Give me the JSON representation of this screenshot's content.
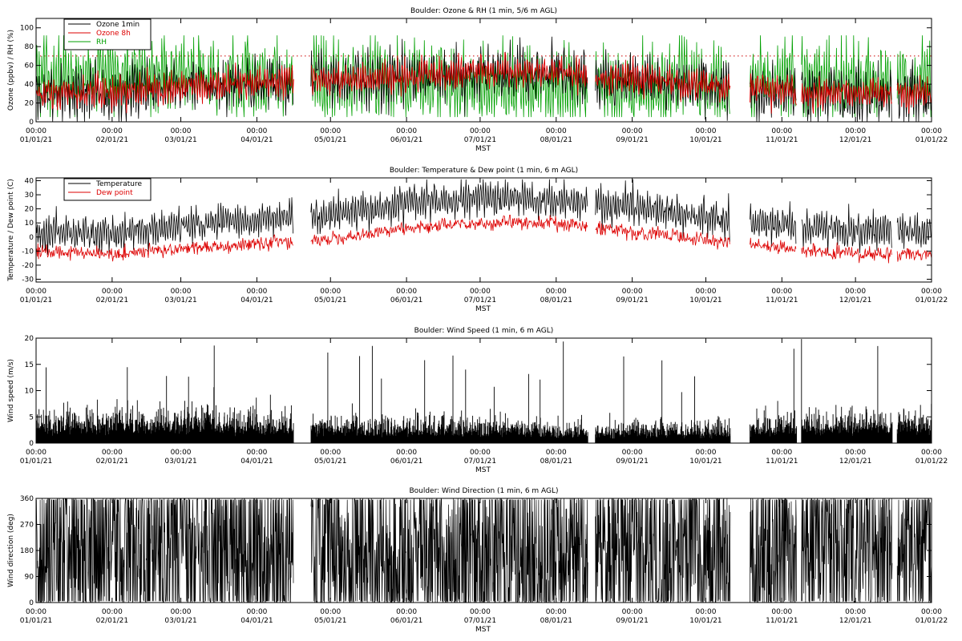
{
  "chart_data": [
    {
      "type": "line",
      "title": "Boulder: Ozone & RH (1 min, 5/6 m AGL)",
      "xlabel": "MST",
      "ylabel": "Ozone (ppbv) / RH (%)",
      "xlim": [
        "01/01/21",
        "01/01/22"
      ],
      "ylim": [
        0,
        110
      ],
      "yticks": [
        "0",
        "20",
        "40",
        "60",
        "80",
        "100"
      ],
      "xticks": [
        "01/01/21",
        "02/01/21",
        "03/01/21",
        "04/01/21",
        "05/01/21",
        "06/01/21",
        "07/01/21",
        "08/01/21",
        "09/01/21",
        "10/01/21",
        "11/01/21",
        "12/01/21",
        "01/01/22"
      ],
      "xtick_time": "00:00",
      "legend": {
        "position": "top-left",
        "entries": [
          "Ozone 1min",
          "Ozone 8h",
          "RH"
        ]
      },
      "reference_line": {
        "value": 70,
        "color": "#cc0000",
        "style": "dotted"
      },
      "colors": {
        "Ozone 1min": "#000000",
        "Ozone 8h": "#dd0000",
        "RH": "#00a000"
      },
      "series": [
        {
          "name": "Ozone 1min",
          "x": [
            "01/01/21",
            "02/01/21",
            "03/01/21",
            "04/01/21",
            "05/01/21",
            "06/01/21",
            "07/01/21",
            "08/01/21",
            "09/01/21",
            "10/01/21",
            "11/01/21",
            "12/01/21"
          ],
          "values": [
            32,
            30,
            38,
            42,
            44,
            48,
            52,
            50,
            44,
            38,
            30,
            28
          ]
        },
        {
          "name": "Ozone 8h",
          "x": [
            "01/01/21",
            "02/01/21",
            "03/01/21",
            "04/01/21",
            "05/01/21",
            "06/01/21",
            "07/01/21",
            "08/01/21",
            "09/01/21",
            "10/01/21",
            "11/01/21",
            "12/01/21"
          ],
          "values": [
            32,
            30,
            38,
            42,
            44,
            48,
            54,
            52,
            46,
            38,
            32,
            30
          ]
        },
        {
          "name": "RH",
          "x": [
            "01/01/21",
            "02/01/21",
            "03/01/21",
            "04/01/21",
            "05/01/21",
            "06/01/21",
            "07/01/21",
            "08/01/21",
            "09/01/21",
            "10/01/21",
            "11/01/21",
            "12/01/21"
          ],
          "values": [
            45,
            50,
            48,
            45,
            45,
            45,
            40,
            38,
            38,
            38,
            45,
            42
          ]
        }
      ]
    },
    {
      "type": "line",
      "title": "Boulder: Temperature & Dew point (1 min, 6 m AGL)",
      "xlabel": "MST",
      "ylabel": "Temperature / Dew point (C)",
      "xlim": [
        "01/01/21",
        "01/01/22"
      ],
      "ylim": [
        -32,
        42
      ],
      "yticks": [
        "-30",
        "-20",
        "-10",
        "0",
        "10",
        "20",
        "30",
        "40"
      ],
      "xticks": [
        "01/01/21",
        "02/01/21",
        "03/01/21",
        "04/01/21",
        "05/01/21",
        "06/01/21",
        "07/01/21",
        "08/01/21",
        "09/01/21",
        "10/01/21",
        "11/01/21",
        "12/01/21",
        "01/01/22"
      ],
      "xtick_time": "00:00",
      "legend": {
        "position": "top-left",
        "entries": [
          "Temperature",
          "Dew point"
        ]
      },
      "colors": {
        "Temperature": "#000000",
        "Dew point": "#dd0000"
      },
      "series": [
        {
          "name": "Temperature",
          "x": [
            "01/01/21",
            "02/01/21",
            "03/01/21",
            "04/01/21",
            "05/01/21",
            "06/01/21",
            "07/01/21",
            "08/01/21",
            "09/01/21",
            "10/01/21",
            "11/01/21",
            "12/01/21"
          ],
          "values": [
            3,
            2,
            8,
            12,
            16,
            24,
            28,
            26,
            22,
            14,
            8,
            4
          ]
        },
        {
          "name": "Dew point",
          "x": [
            "01/01/21",
            "02/01/21",
            "03/01/21",
            "04/01/21",
            "05/01/21",
            "06/01/21",
            "07/01/21",
            "08/01/21",
            "09/01/21",
            "10/01/21",
            "11/01/21",
            "12/01/21"
          ],
          "values": [
            -10,
            -12,
            -8,
            -5,
            -2,
            6,
            10,
            10,
            4,
            -2,
            -8,
            -12
          ]
        }
      ]
    },
    {
      "type": "line",
      "title": "Boulder: Wind Speed (1 min, 6 m AGL)",
      "xlabel": "MST",
      "ylabel": "Wind speed (m/s)",
      "xlim": [
        "01/01/21",
        "01/01/22"
      ],
      "ylim": [
        0,
        20
      ],
      "yticks": [
        "0",
        "5",
        "10",
        "15",
        "20"
      ],
      "xticks": [
        "01/01/21",
        "02/01/21",
        "03/01/21",
        "04/01/21",
        "05/01/21",
        "06/01/21",
        "07/01/21",
        "08/01/21",
        "09/01/21",
        "10/01/21",
        "11/01/21",
        "12/01/21",
        "01/01/22"
      ],
      "xtick_time": "00:00",
      "colors": {
        "Wind speed": "#000000"
      },
      "series": [
        {
          "x": [
            "01/01/21",
            "02/01/21",
            "03/01/21",
            "04/01/21",
            "05/01/21",
            "06/01/21",
            "07/01/21",
            "08/01/21",
            "09/01/21",
            "10/01/21",
            "11/01/21",
            "12/01/21"
          ],
          "values": [
            3,
            3,
            3.5,
            3,
            2.5,
            2.5,
            2.5,
            2,
            2,
            2,
            2.5,
            3
          ]
        }
      ]
    },
    {
      "type": "line",
      "title": "Boulder: Wind Direction (1 min, 6 m AGL)",
      "xlabel": "MST",
      "ylabel": "Wind direction (deg)",
      "xlim": [
        "01/01/21",
        "01/01/22"
      ],
      "ylim": [
        0,
        360
      ],
      "yticks": [
        "0",
        "90",
        "180",
        "270",
        "360"
      ],
      "xticks": [
        "01/01/21",
        "02/01/21",
        "03/01/21",
        "04/01/21",
        "05/01/21",
        "06/01/21",
        "07/01/21",
        "08/01/21",
        "09/01/21",
        "10/01/21",
        "11/01/21",
        "12/01/21",
        "01/01/22"
      ],
      "xtick_time": "00:00",
      "colors": {
        "Wind direction": "#000000"
      },
      "series": [
        {
          "x": [
            "01/01/21",
            "02/01/21",
            "03/01/21",
            "04/01/21",
            "05/01/21",
            "06/01/21",
            "07/01/21",
            "08/01/21",
            "09/01/21",
            "10/01/21",
            "11/01/21",
            "12/01/21"
          ],
          "values": [
            180,
            180,
            180,
            180,
            160,
            150,
            150,
            160,
            180,
            180,
            180,
            180
          ]
        }
      ]
    }
  ],
  "data_gaps": [
    [
      "04/16/21",
      "04/23/21"
    ],
    [
      "08/14/21",
      "08/17/21"
    ],
    [
      "10/11/21",
      "10/19/21"
    ],
    [
      "11/07/21",
      "11/09/21"
    ],
    [
      "12/16/21",
      "12/18/21"
    ]
  ]
}
